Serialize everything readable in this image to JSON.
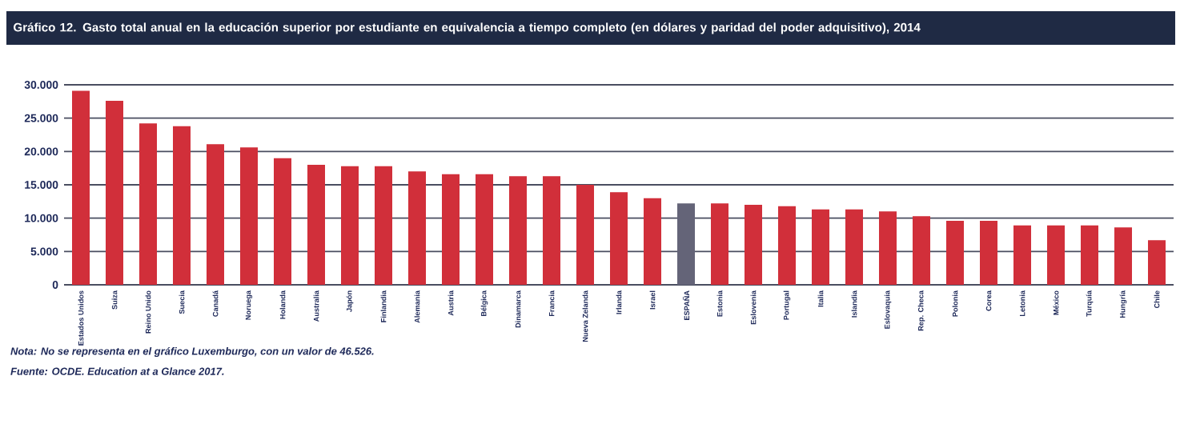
{
  "chart_data": {
    "type": "bar",
    "title": "Gráfico 12. Gasto total anual en la educación superior por estudiante en equivalencia a tiempo completo (en dólares y paridad del poder adquisitivo), 2014",
    "categories": [
      "Estados Unidos",
      "Suiza",
      "Reino Unido",
      "Suecia",
      "Canadá",
      "Noruega",
      "Holanda",
      "Australia",
      "Japón",
      "Finlandia",
      "Alemania",
      "Austria",
      "Bélgica",
      "Dinamarca",
      "Francia",
      "Nueva Zelanda",
      "Irlanda",
      "Israel",
      "ESPAÑA",
      "Estonia",
      "Eslovenia",
      "Portugal",
      "Italia",
      "Islandia",
      "Eslovaquia",
      "Rep. Checa",
      "Polonia",
      "Corea",
      "Letonia",
      "México",
      "Turquía",
      "Hungría",
      "Chile"
    ],
    "values": [
      29100,
      27600,
      24200,
      23800,
      21100,
      20600,
      19000,
      18000,
      17800,
      17800,
      17000,
      16600,
      16600,
      16300,
      16300,
      15000,
      13900,
      13000,
      12200,
      12200,
      12000,
      11800,
      11300,
      11300,
      11000,
      10300,
      9600,
      9600,
      8900,
      8900,
      8900,
      8600,
      6700
    ],
    "colors": [
      "#d12f3a",
      "#d12f3a",
      "#d12f3a",
      "#d12f3a",
      "#d12f3a",
      "#d12f3a",
      "#d12f3a",
      "#d12f3a",
      "#d12f3a",
      "#d12f3a",
      "#d12f3a",
      "#d12f3a",
      "#d12f3a",
      "#d12f3a",
      "#d12f3a",
      "#d12f3a",
      "#d12f3a",
      "#d12f3a",
      "#646478",
      "#d12f3a",
      "#d12f3a",
      "#d12f3a",
      "#d12f3a",
      "#d12f3a",
      "#d12f3a",
      "#d12f3a",
      "#d12f3a",
      "#d12f3a",
      "#d12f3a",
      "#d12f3a",
      "#d12f3a",
      "#d12f3a",
      "#d12f3a"
    ],
    "ylim": [
      0,
      30000
    ],
    "yticks": [
      {
        "value": 0,
        "label": "0"
      },
      {
        "value": 5000,
        "label": "5.000"
      },
      {
        "value": 10000,
        "label": "10.000"
      },
      {
        "value": 15000,
        "label": "15.000"
      },
      {
        "value": 20000,
        "label": "20.000"
      },
      {
        "value": 25000,
        "label": "25.000"
      },
      {
        "value": 30000,
        "label": "30.000"
      }
    ],
    "grid": "y",
    "annotations": [
      "Nota: No se representa en el gráfico Luxemburgo, con un valor de 46.526.",
      "Fuente: OCDE. Education at a Glance 2017."
    ]
  }
}
